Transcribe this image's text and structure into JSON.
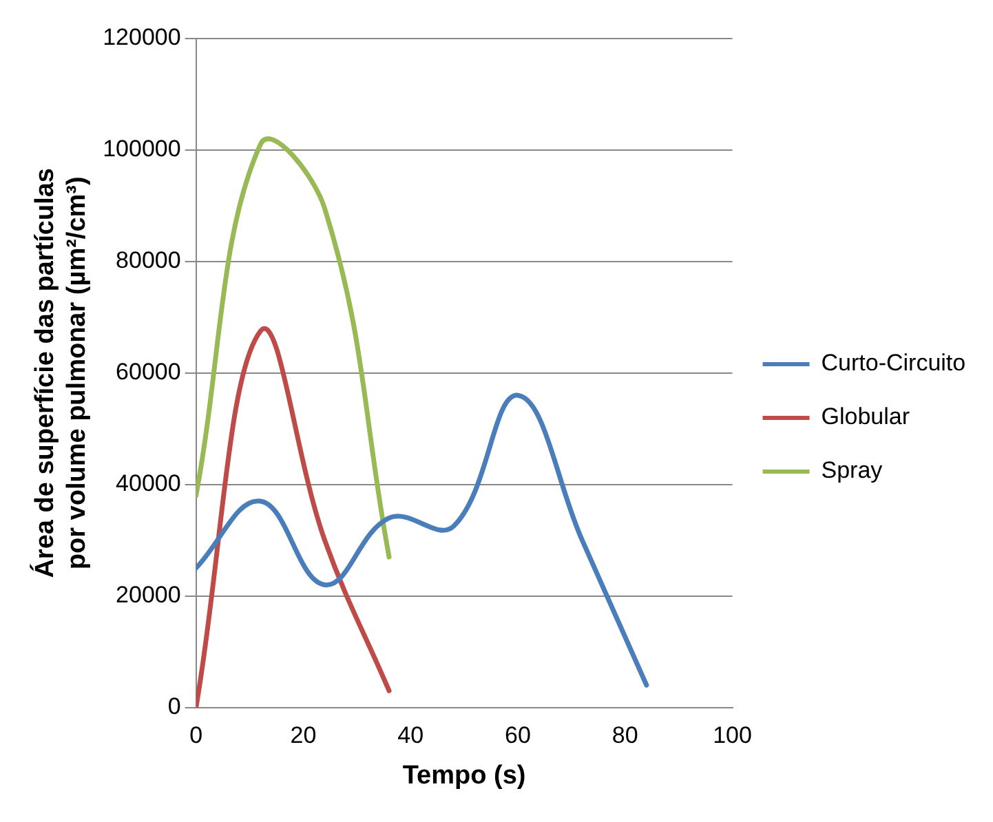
{
  "chart_data": {
    "type": "line",
    "xlabel": "Tempo (s)",
    "ylabel": "Área de superfície das partículas\npor volume pulmonar (µm²/cm³)",
    "xlim": [
      0,
      100
    ],
    "xticks": [
      0,
      20,
      40,
      60,
      80,
      100
    ],
    "ylim": [
      0,
      120000
    ],
    "yticks": [
      0,
      20000,
      40000,
      60000,
      80000,
      100000,
      120000
    ],
    "grid": "y",
    "legend": "right",
    "marker": "none",
    "line_style": "solid",
    "series": [
      {
        "name": "Curto-Circuito",
        "color": "#4a7ebb",
        "x": [
          0,
          12,
          24,
          36,
          48,
          60,
          72,
          84
        ],
        "values": [
          25000,
          37000,
          22000,
          34000,
          32500,
          56000,
          30000,
          4000
        ]
      },
      {
        "name": "Globular",
        "color": "#be4b48",
        "x": [
          0,
          12,
          24,
          36
        ],
        "values": [
          0,
          67500,
          30000,
          3000
        ]
      },
      {
        "name": "Spray",
        "color": "#98b954",
        "x": [
          0,
          12,
          24,
          36
        ],
        "values": [
          38000,
          101000,
          89500,
          27000
        ]
      }
    ]
  }
}
